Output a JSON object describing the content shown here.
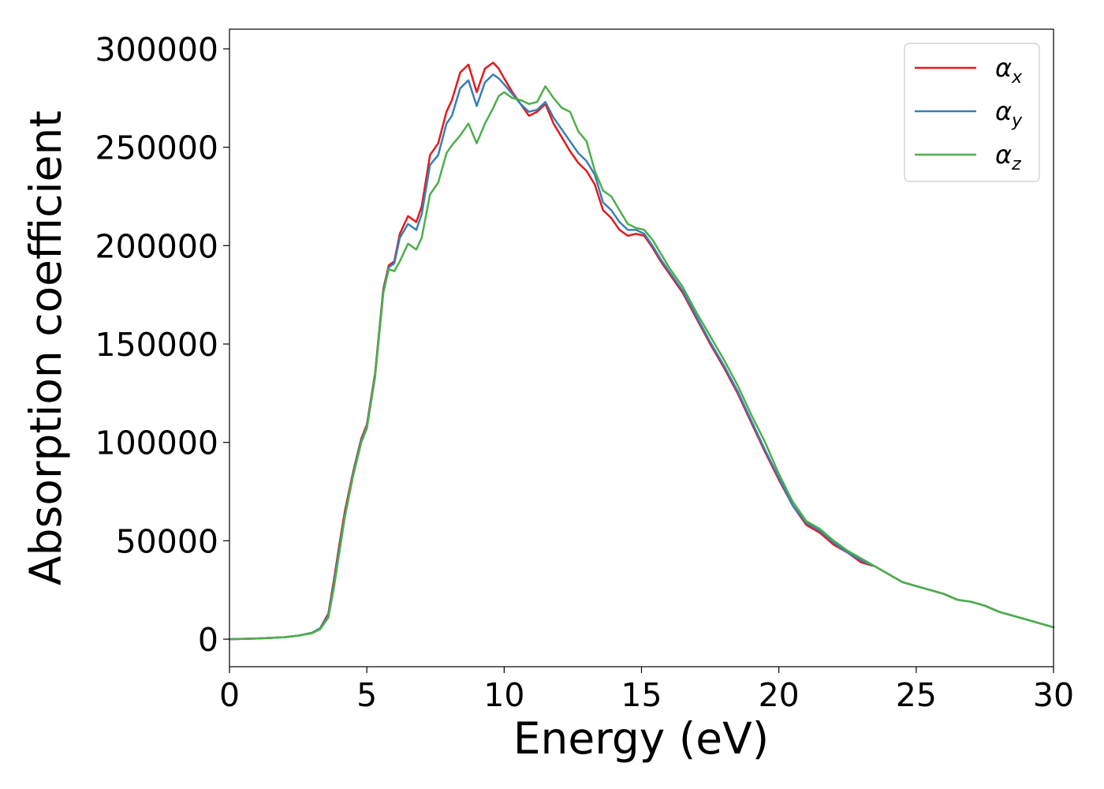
{
  "chart_data": {
    "type": "line",
    "title": "",
    "xlabel": "Energy (eV)",
    "ylabel": "Absorption coefficient",
    "xlim": [
      0,
      30
    ],
    "ylim": [
      -14000,
      310000
    ],
    "xticks": [
      0,
      5,
      10,
      15,
      20,
      25,
      30
    ],
    "yticks": [
      0,
      50000,
      100000,
      150000,
      200000,
      250000,
      300000
    ],
    "grid": false,
    "legend_position": "top-right",
    "x": [
      0,
      1,
      2,
      2.5,
      3,
      3.3,
      3.6,
      3.8,
      4,
      4.2,
      4.5,
      4.8,
      5,
      5.3,
      5.6,
      5.8,
      6,
      6.2,
      6.5,
      6.8,
      7,
      7.3,
      7.6,
      7.9,
      8.1,
      8.4,
      8.7,
      9,
      9.3,
      9.6,
      9.8,
      10,
      10.3,
      10.6,
      10.9,
      11.2,
      11.5,
      11.8,
      12.1,
      12.4,
      12.7,
      13,
      13.3,
      13.6,
      13.9,
      14.2,
      14.5,
      14.8,
      15.1,
      15.4,
      15.7,
      16,
      16.5,
      17,
      17.5,
      18,
      18.5,
      19,
      19.5,
      20,
      20.5,
      21,
      21.5,
      22,
      22.5,
      23,
      23.5,
      24,
      24.5,
      25,
      25.5,
      26,
      26.5,
      27,
      27.5,
      28,
      28.5,
      29,
      29.5,
      30
    ],
    "series": [
      {
        "name": "αx",
        "label_base": "α",
        "label_sub": "x",
        "color": "#e41a1c",
        "values": [
          0,
          300,
          1000,
          1800,
          3200,
          5500,
          13000,
          30000,
          48000,
          65000,
          85000,
          102000,
          109000,
          135000,
          178000,
          190000,
          192000,
          206000,
          215000,
          212000,
          220000,
          246000,
          252000,
          268000,
          274000,
          288000,
          292000,
          278000,
          290000,
          293000,
          290000,
          285000,
          278000,
          272000,
          266000,
          268000,
          272000,
          262000,
          255000,
          248000,
          242000,
          238000,
          231000,
          218000,
          214000,
          208000,
          205000,
          206000,
          205000,
          199000,
          192000,
          186000,
          176000,
          163000,
          150000,
          138000,
          125000,
          110000,
          95000,
          81000,
          68000,
          58000,
          54000,
          48000,
          44000,
          39000,
          37000,
          33000,
          29000,
          27000,
          25000,
          23000,
          20000,
          19000,
          17000,
          14000,
          12000,
          10000,
          8000,
          6000
        ]
      },
      {
        "name": "αy",
        "label_base": "α",
        "label_sub": "y",
        "color": "#377eb8",
        "values": [
          0,
          300,
          1000,
          1800,
          3200,
          5500,
          12000,
          28000,
          46000,
          63000,
          84000,
          101000,
          108000,
          134000,
          177000,
          189000,
          191000,
          204000,
          211000,
          208000,
          216000,
          241000,
          246000,
          262000,
          266000,
          280000,
          284000,
          271000,
          283000,
          287000,
          285000,
          282000,
          277000,
          272000,
          268000,
          269000,
          273000,
          265000,
          259000,
          253000,
          247000,
          243000,
          236000,
          222000,
          218000,
          212000,
          208000,
          208000,
          206000,
          200000,
          193000,
          187000,
          177000,
          164000,
          151000,
          139000,
          126000,
          111000,
          96000,
          82000,
          68000,
          59000,
          55000,
          49000,
          44000,
          40000,
          37000,
          33000,
          29000,
          27000,
          25000,
          23000,
          20000,
          19000,
          17000,
          14000,
          12000,
          10000,
          8000,
          6000
        ]
      },
      {
        "name": "αz",
        "label_base": "α",
        "label_sub": "z",
        "color": "#4daf4a",
        "values": [
          0,
          300,
          1000,
          1800,
          3000,
          5000,
          11000,
          26000,
          44000,
          62000,
          83000,
          100000,
          107000,
          133000,
          176000,
          188000,
          187000,
          192000,
          201000,
          198000,
          204000,
          226000,
          232000,
          247000,
          251000,
          256000,
          262000,
          252000,
          262000,
          270000,
          276000,
          278000,
          275000,
          274000,
          272000,
          273000,
          281000,
          275000,
          270000,
          268000,
          258000,
          253000,
          238000,
          228000,
          225000,
          218000,
          211000,
          209000,
          208000,
          203000,
          196000,
          189000,
          179000,
          166000,
          154000,
          142000,
          129000,
          114000,
          100000,
          84000,
          70000,
          60000,
          56000,
          50000,
          45000,
          41000,
          37000,
          33000,
          29000,
          27000,
          25000,
          23000,
          20000,
          19000,
          17000,
          14000,
          12000,
          10000,
          8000,
          6000
        ]
      }
    ]
  }
}
